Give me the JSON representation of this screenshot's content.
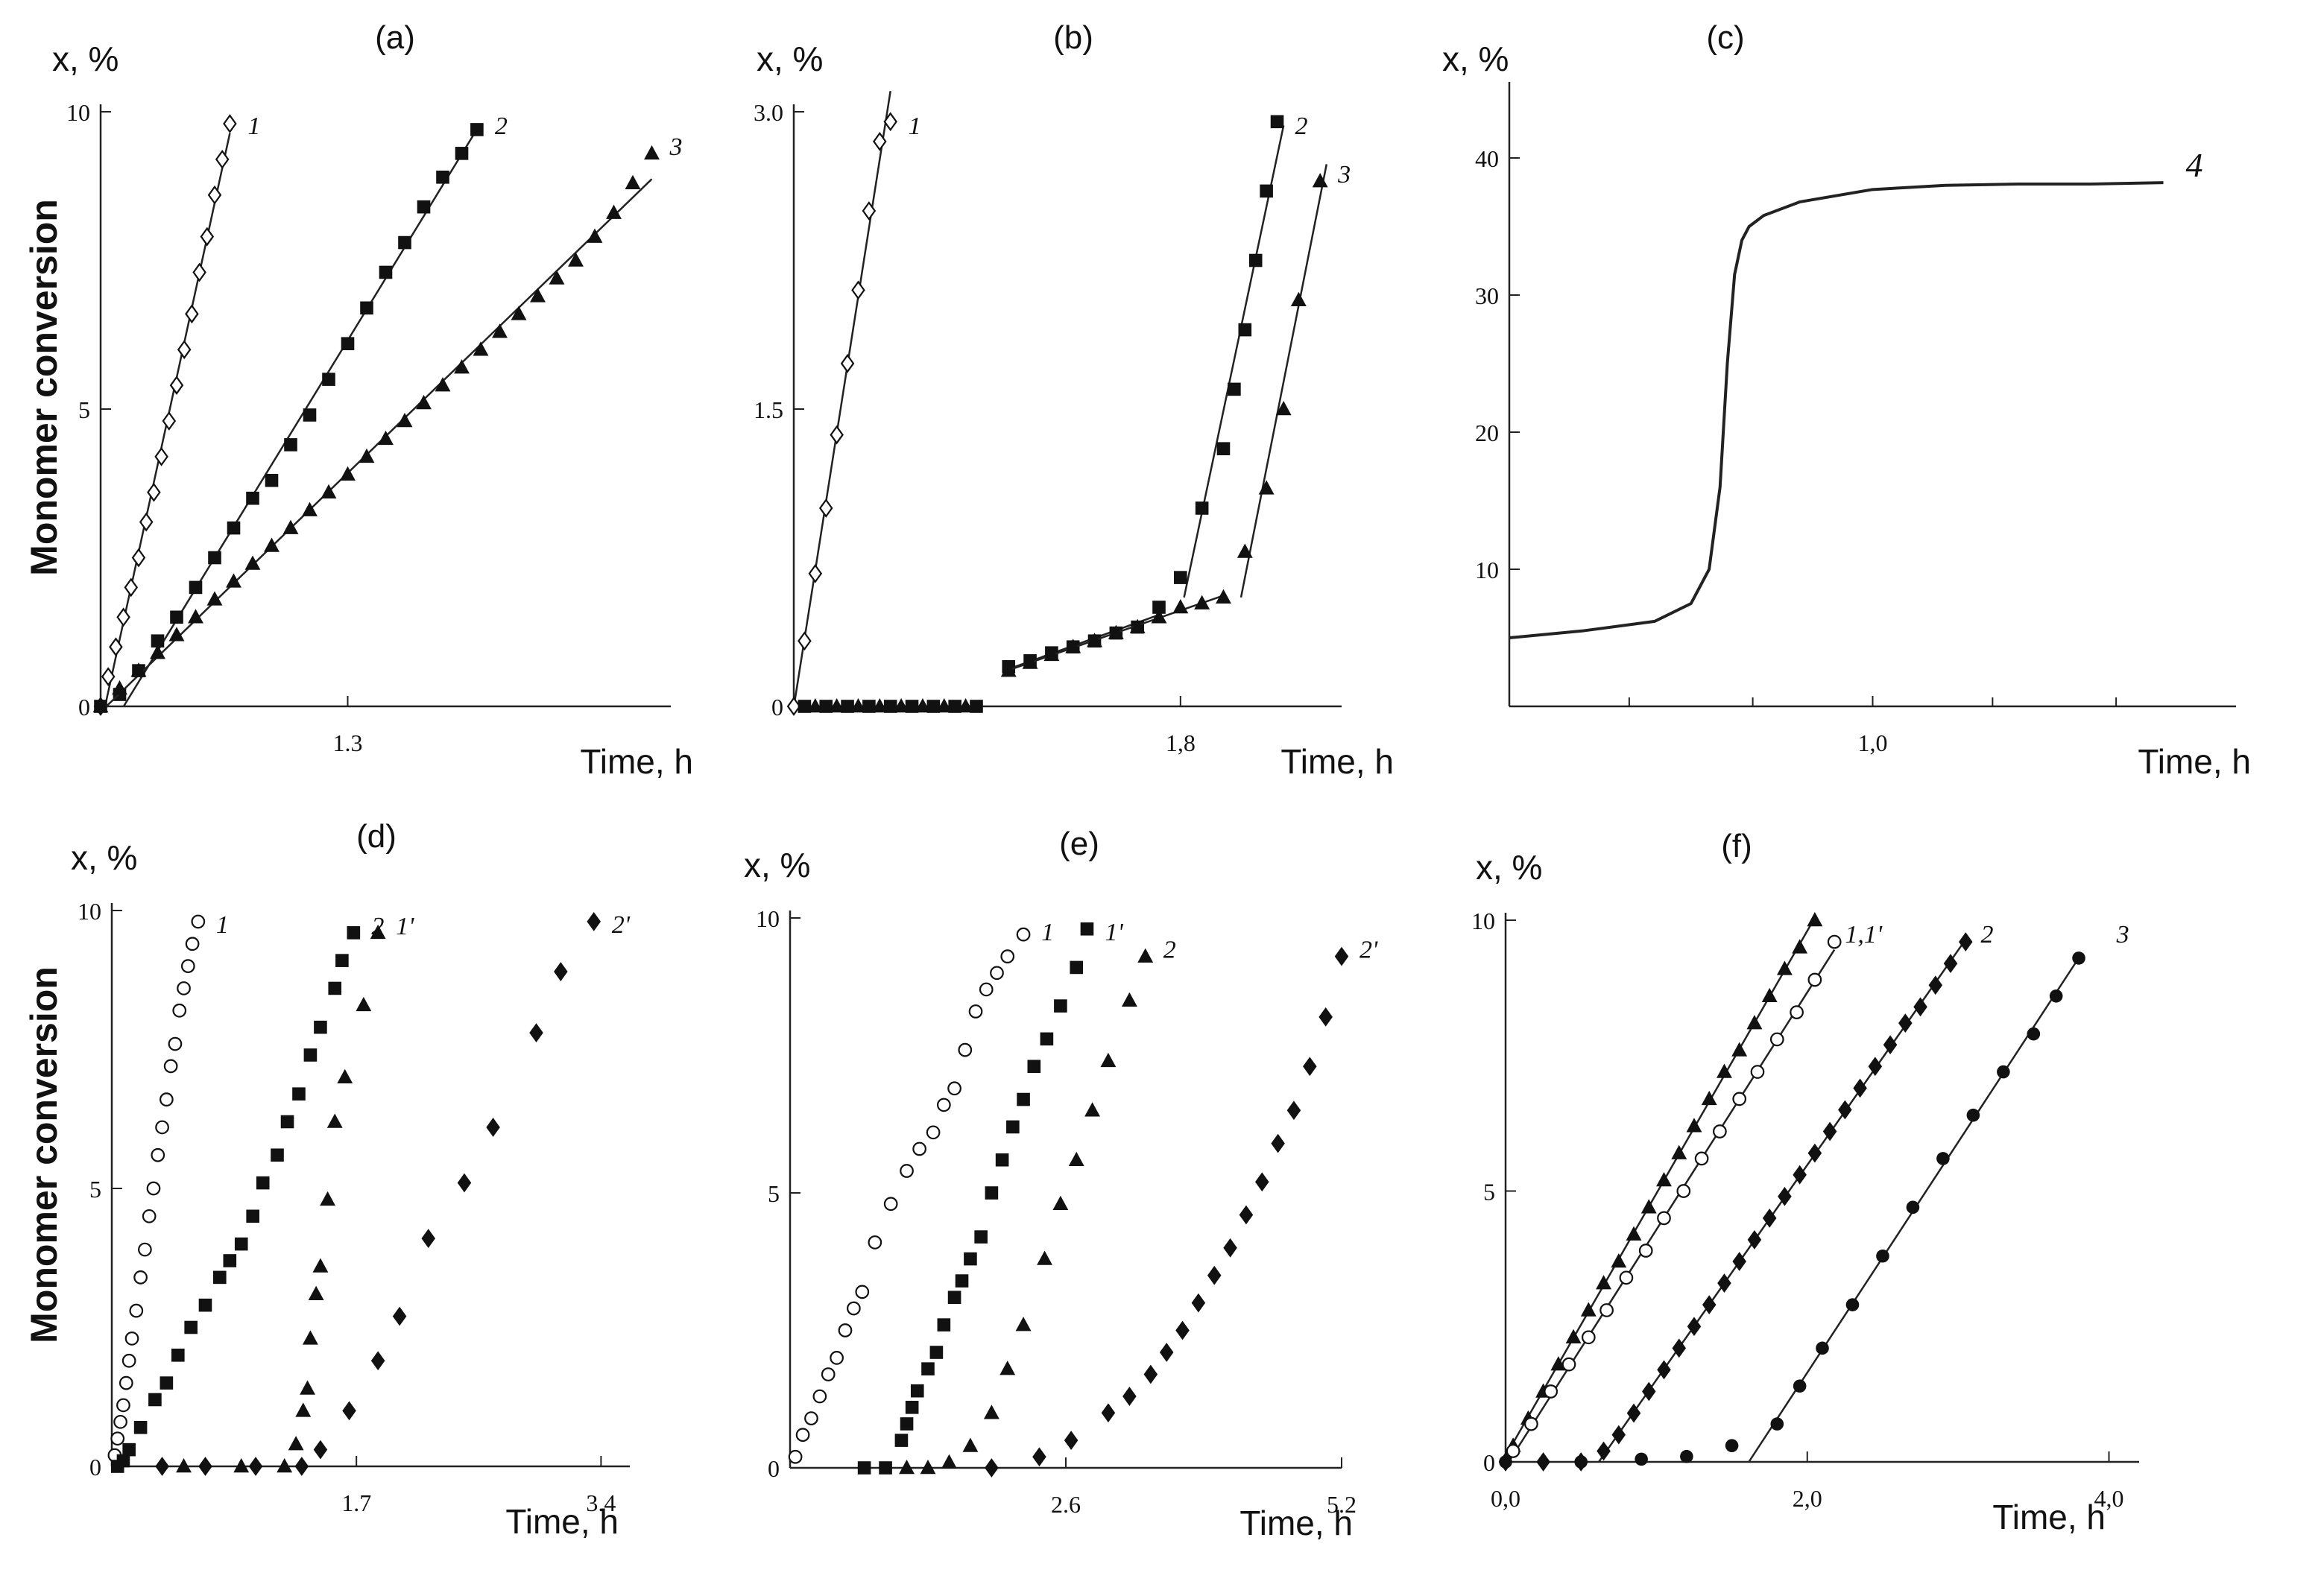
{
  "figure": {
    "ylabel_top": "Monomer conversion",
    "ylabel_bottom": "Monomer conversion"
  },
  "chart_data": [
    {
      "panel": "(a)",
      "type": "scatter",
      "ylabel": "x, %",
      "xlabel": "Time, h",
      "xlim": [
        0,
        3.0
      ],
      "ylim": [
        0,
        10
      ],
      "xticks": [
        {
          "v": 1.3,
          "label": "1.3"
        }
      ],
      "yticks": [
        {
          "v": 0,
          "label": "0"
        },
        {
          "v": 5,
          "label": "5"
        },
        {
          "v": 10,
          "label": "10"
        }
      ],
      "series": [
        {
          "name": "1",
          "marker": "diamond-open",
          "fit": true,
          "x": [
            0,
            0.04,
            0.08,
            0.12,
            0.16,
            0.2,
            0.24,
            0.28,
            0.32,
            0.36,
            0.4,
            0.44,
            0.48,
            0.52,
            0.56,
            0.6,
            0.64,
            0.68
          ],
          "y": [
            0,
            0.5,
            1.0,
            1.5,
            2.0,
            2.5,
            3.1,
            3.6,
            4.2,
            4.8,
            5.4,
            6.0,
            6.6,
            7.3,
            7.9,
            8.6,
            9.2,
            9.8
          ]
        },
        {
          "name": "2",
          "marker": "square",
          "fit": true,
          "x": [
            0,
            0.1,
            0.2,
            0.3,
            0.4,
            0.5,
            0.6,
            0.7,
            0.8,
            0.9,
            1.0,
            1.1,
            1.2,
            1.3,
            1.4,
            1.5,
            1.6,
            1.7,
            1.8,
            1.9,
            1.98
          ],
          "y": [
            0,
            0.2,
            0.6,
            1.1,
            1.5,
            2.0,
            2.5,
            3.0,
            3.5,
            3.8,
            4.4,
            4.9,
            5.5,
            6.1,
            6.7,
            7.3,
            7.8,
            8.4,
            8.9,
            9.3,
            9.7
          ]
        },
        {
          "name": "3",
          "marker": "triangle",
          "fit": true,
          "x": [
            0,
            0.1,
            0.2,
            0.3,
            0.4,
            0.5,
            0.6,
            0.7,
            0.8,
            0.9,
            1.0,
            1.1,
            1.2,
            1.3,
            1.4,
            1.5,
            1.6,
            1.7,
            1.8,
            1.9,
            2.0,
            2.1,
            2.2,
            2.3,
            2.4,
            2.5,
            2.6,
            2.7,
            2.8,
            2.9
          ],
          "y": [
            0,
            0.3,
            0.6,
            0.9,
            1.2,
            1.5,
            1.8,
            2.1,
            2.4,
            2.7,
            3.0,
            3.3,
            3.6,
            3.9,
            4.2,
            4.5,
            4.8,
            5.1,
            5.4,
            5.7,
            6.0,
            6.3,
            6.6,
            6.9,
            7.2,
            7.5,
            7.9,
            8.3,
            8.8,
            9.3
          ]
        }
      ]
    },
    {
      "panel": "(b)",
      "type": "scatter",
      "ylabel": "x, %",
      "xlabel": "Time, h",
      "xlim": [
        0,
        2.55
      ],
      "ylim": [
        0,
        3.0
      ],
      "xticks": [
        {
          "v": 1.8,
          "label": "1,8"
        }
      ],
      "yticks": [
        {
          "v": 0,
          "label": "0"
        },
        {
          "v": 1.5,
          "label": "1.5"
        },
        {
          "v": 3.0,
          "label": "3.0"
        }
      ],
      "series": [
        {
          "name": "1",
          "marker": "diamond-open",
          "fit": true,
          "x": [
            0,
            0.05,
            0.1,
            0.15,
            0.2,
            0.25,
            0.3,
            0.35,
            0.4,
            0.45
          ],
          "y": [
            0,
            0.33,
            0.67,
            1.0,
            1.37,
            1.73,
            2.1,
            2.5,
            2.85,
            2.95
          ]
        },
        {
          "name": "2",
          "marker": "square",
          "fit": false,
          "x": [
            0.05,
            0.15,
            0.25,
            0.35,
            0.45,
            0.55,
            0.65,
            0.75,
            0.85,
            1.0,
            1.1,
            1.2,
            1.3,
            1.4,
            1.5,
            1.6,
            1.7,
            1.8,
            1.9,
            2.0,
            2.05,
            2.1,
            2.15,
            2.2,
            2.25
          ],
          "y": [
            0,
            0,
            0,
            0,
            0,
            0,
            0,
            0,
            0,
            0.2,
            0.23,
            0.27,
            0.3,
            0.33,
            0.37,
            0.4,
            0.5,
            0.65,
            1.0,
            1.3,
            1.6,
            1.9,
            2.25,
            2.6,
            2.95
          ]
        },
        {
          "name": "3",
          "marker": "triangle",
          "fit": false,
          "x": [
            0.1,
            0.2,
            0.3,
            0.4,
            0.5,
            0.6,
            0.7,
            0.8,
            1.0,
            1.1,
            1.2,
            1.3,
            1.4,
            1.5,
            1.6,
            1.7,
            1.8,
            1.9,
            2.0,
            2.1,
            2.2,
            2.28,
            2.35,
            2.45
          ],
          "y": [
            0,
            0,
            0,
            0,
            0,
            0,
            0,
            0,
            0.18,
            0.22,
            0.26,
            0.3,
            0.33,
            0.37,
            0.4,
            0.45,
            0.5,
            0.52,
            0.55,
            0.78,
            1.1,
            1.5,
            2.05,
            2.65
          ]
        }
      ]
    },
    {
      "panel": "(c)",
      "type": "line",
      "ylabel": "x, %",
      "xlabel": "Time, h",
      "xlim": [
        0,
        2.0
      ],
      "ylim": [
        0,
        45
      ],
      "xticks": [
        {
          "v": 1.0,
          "label": "1,0"
        }
      ],
      "yticks": [
        {
          "v": 10,
          "label": "10"
        },
        {
          "v": 20,
          "label": "20"
        },
        {
          "v": 30,
          "label": "30"
        },
        {
          "v": 40,
          "label": "40"
        }
      ],
      "series": [
        {
          "name": "4",
          "x": [
            0,
            0.2,
            0.4,
            0.5,
            0.55,
            0.58,
            0.6,
            0.62,
            0.64,
            0.66,
            0.7,
            0.8,
            1.0,
            1.2,
            1.4,
            1.6,
            1.8
          ],
          "y": [
            5.0,
            5.5,
            6.2,
            7.5,
            10.0,
            16.0,
            25.0,
            31.5,
            34.0,
            35.0,
            35.8,
            36.8,
            37.7,
            38.0,
            38.1,
            38.1,
            38.2
          ]
        }
      ]
    },
    {
      "panel": "(d)",
      "type": "scatter",
      "ylabel": "x, %",
      "xlabel": "Time, h",
      "xlim": [
        0,
        3.6
      ],
      "ylim": [
        0,
        10
      ],
      "xticks": [
        {
          "v": 1.7,
          "label": "1.7"
        },
        {
          "v": 3.4,
          "label": "3.4"
        }
      ],
      "yticks": [
        {
          "v": 0,
          "label": "0"
        },
        {
          "v": 5,
          "label": "5"
        },
        {
          "v": 10,
          "label": "10"
        }
      ],
      "series": [
        {
          "name": "1",
          "marker": "circle-open",
          "x": [
            0.02,
            0.04,
            0.06,
            0.08,
            0.1,
            0.12,
            0.14,
            0.17,
            0.2,
            0.23,
            0.26,
            0.29,
            0.32,
            0.35,
            0.38,
            0.41,
            0.44,
            0.47,
            0.5,
            0.53,
            0.56,
            0.6
          ],
          "y": [
            0.2,
            0.5,
            0.8,
            1.1,
            1.5,
            1.9,
            2.3,
            2.8,
            3.4,
            3.9,
            4.5,
            5.0,
            5.6,
            6.1,
            6.6,
            7.2,
            7.6,
            8.2,
            8.6,
            9.0,
            9.4,
            9.8
          ]
        },
        {
          "name": "2",
          "marker": "square",
          "x": [
            0.04,
            0.08,
            0.12,
            0.2,
            0.3,
            0.38,
            0.46,
            0.55,
            0.65,
            0.75,
            0.82,
            0.9,
            0.98,
            1.05,
            1.15,
            1.22,
            1.3,
            1.38,
            1.45,
            1.55,
            1.6,
            1.68
          ],
          "y": [
            0,
            0.1,
            0.3,
            0.7,
            1.2,
            1.5,
            2.0,
            2.5,
            2.9,
            3.4,
            3.7,
            4.0,
            4.5,
            5.1,
            5.6,
            6.2,
            6.7,
            7.4,
            7.9,
            8.6,
            9.1,
            9.6
          ]
        },
        {
          "name": "1'",
          "marker": "triangle",
          "x": [
            0.5,
            0.9,
            1.2,
            1.28,
            1.33,
            1.36,
            1.38,
            1.42,
            1.45,
            1.5,
            1.55,
            1.62,
            1.75,
            1.85
          ],
          "y": [
            0,
            0,
            0,
            0.4,
            1.0,
            1.4,
            2.3,
            3.1,
            3.6,
            4.8,
            6.2,
            7.0,
            8.3,
            9.6
          ]
        },
        {
          "name": "2'",
          "marker": "diamond",
          "x": [
            0.35,
            0.65,
            1.0,
            1.32,
            1.45,
            1.65,
            1.85,
            2.0,
            2.2,
            2.45,
            2.65,
            2.95,
            3.12,
            3.35
          ],
          "y": [
            0,
            0,
            0,
            0,
            0.3,
            1.0,
            1.9,
            2.7,
            4.1,
            5.1,
            6.1,
            7.8,
            8.9,
            9.8
          ]
        }
      ]
    },
    {
      "panel": "(e)",
      "type": "scatter",
      "ylabel": "x, %",
      "xlabel": "Time, h",
      "xlim": [
        0,
        5.2
      ],
      "ylim": [
        0,
        10
      ],
      "xticks": [
        {
          "v": 2.6,
          "label": "2.6"
        },
        {
          "v": 5.2,
          "label": "5.2"
        }
      ],
      "yticks": [
        {
          "v": 0,
          "label": "0"
        },
        {
          "v": 5,
          "label": "5"
        },
        {
          "v": 10,
          "label": "10"
        }
      ],
      "series": [
        {
          "name": "1",
          "marker": "circle-open",
          "x": [
            0.05,
            0.12,
            0.2,
            0.28,
            0.36,
            0.44,
            0.52,
            0.6,
            0.68,
            0.8,
            0.95,
            1.1,
            1.22,
            1.35,
            1.45,
            1.55,
            1.65,
            1.75,
            1.85,
            1.95,
            2.05,
            2.2
          ],
          "y": [
            0.2,
            0.6,
            0.9,
            1.3,
            1.7,
            2.0,
            2.5,
            2.9,
            3.2,
            4.1,
            4.8,
            5.4,
            5.8,
            6.1,
            6.6,
            6.9,
            7.6,
            8.3,
            8.7,
            9.0,
            9.3,
            9.7
          ]
        },
        {
          "name": "1'",
          "marker": "square",
          "x": [
            0.7,
            0.9,
            1.05,
            1.1,
            1.15,
            1.2,
            1.3,
            1.38,
            1.45,
            1.55,
            1.62,
            1.7,
            1.8,
            1.9,
            2.0,
            2.1,
            2.2,
            2.3,
            2.42,
            2.55,
            2.7,
            2.8
          ],
          "y": [
            0,
            0,
            0.5,
            0.8,
            1.1,
            1.4,
            1.8,
            2.1,
            2.6,
            3.1,
            3.4,
            3.8,
            4.2,
            5.0,
            5.6,
            6.2,
            6.7,
            7.3,
            7.8,
            8.4,
            9.1,
            9.8
          ]
        },
        {
          "name": "2",
          "marker": "triangle",
          "x": [
            1.1,
            1.3,
            1.5,
            1.7,
            1.9,
            2.05,
            2.2,
            2.4,
            2.55,
            2.7,
            2.85,
            3.0,
            3.2,
            3.35
          ],
          "y": [
            0,
            0,
            0.1,
            0.4,
            1.0,
            1.8,
            2.6,
            3.8,
            4.8,
            5.6,
            6.5,
            7.4,
            8.5,
            9.3
          ]
        },
        {
          "name": "2'",
          "marker": "diamond",
          "x": [
            1.9,
            2.35,
            2.65,
            3.0,
            3.2,
            3.4,
            3.55,
            3.7,
            3.85,
            4.0,
            4.15,
            4.3,
            4.45,
            4.6,
            4.75,
            4.9,
            5.05,
            5.2
          ],
          "y": [
            0,
            0.2,
            0.5,
            1.0,
            1.3,
            1.7,
            2.1,
            2.5,
            3.0,
            3.5,
            4.0,
            4.6,
            5.2,
            5.9,
            6.5,
            7.3,
            8.2,
            9.3
          ]
        }
      ]
    },
    {
      "panel": "(f)",
      "type": "scatter",
      "ylabel": "x, %",
      "xlabel": "Time, h",
      "xlim": [
        0,
        4.2
      ],
      "ylim": [
        0,
        10
      ],
      "xticks": [
        {
          "v": 0,
          "label": "0,0"
        },
        {
          "v": 2.0,
          "label": "2,0"
        },
        {
          "v": 4.0,
          "label": "4,0"
        }
      ],
      "yticks": [
        {
          "v": 0,
          "label": "0"
        },
        {
          "v": 5,
          "label": "5"
        },
        {
          "v": 10,
          "label": "10"
        }
      ],
      "series_labels": [
        {
          "v": 2.25,
          "label": "1,1'"
        },
        {
          "v": 3.15,
          "label": "2"
        },
        {
          "v": 4.05,
          "label": "3"
        }
      ],
      "series": [
        {
          "name": "1",
          "marker": "triangle",
          "fit": true,
          "x": [
            0.05,
            0.15,
            0.25,
            0.35,
            0.45,
            0.55,
            0.65,
            0.75,
            0.85,
            0.95,
            1.05,
            1.15,
            1.25,
            1.35,
            1.45,
            1.55,
            1.65,
            1.75,
            1.85,
            1.95,
            2.05
          ],
          "y": [
            0.3,
            0.8,
            1.3,
            1.8,
            2.3,
            2.8,
            3.3,
            3.7,
            4.2,
            4.7,
            5.2,
            5.7,
            6.2,
            6.7,
            7.2,
            7.6,
            8.1,
            8.6,
            9.1,
            9.5,
            10.0
          ]
        },
        {
          "name": "1'",
          "marker": "circle-open",
          "fit": true,
          "x": [
            0.05,
            0.17,
            0.3,
            0.42,
            0.55,
            0.67,
            0.8,
            0.93,
            1.05,
            1.18,
            1.3,
            1.42,
            1.55,
            1.67,
            1.8,
            1.93,
            2.05,
            2.18
          ],
          "y": [
            0.2,
            0.7,
            1.3,
            1.8,
            2.3,
            2.8,
            3.4,
            3.9,
            4.5,
            5.0,
            5.6,
            6.1,
            6.7,
            7.2,
            7.8,
            8.3,
            8.9,
            9.6
          ]
        },
        {
          "name": "2",
          "marker": "diamond",
          "fit": true,
          "x": [
            0,
            0.25,
            0.5,
            0.65,
            0.75,
            0.85,
            0.95,
            1.05,
            1.15,
            1.25,
            1.35,
            1.45,
            1.55,
            1.65,
            1.75,
            1.85,
            1.95,
            2.05,
            2.15,
            2.25,
            2.35,
            2.45,
            2.55,
            2.65,
            2.75,
            2.85,
            2.95,
            3.05
          ],
          "y": [
            0,
            0,
            0,
            0.2,
            0.5,
            0.9,
            1.3,
            1.7,
            2.1,
            2.5,
            2.9,
            3.3,
            3.7,
            4.1,
            4.5,
            4.9,
            5.3,
            5.7,
            6.1,
            6.5,
            6.9,
            7.3,
            7.7,
            8.1,
            8.4,
            8.8,
            9.2,
            9.6
          ]
        },
        {
          "name": "3",
          "marker": "circle",
          "fit": true,
          "x": [
            0,
            0.5,
            0.9,
            1.2,
            1.5,
            1.8,
            1.95,
            2.1,
            2.3,
            2.5,
            2.7,
            2.9,
            3.1,
            3.3,
            3.5,
            3.65,
            3.8
          ],
          "y": [
            0,
            0,
            0.05,
            0.1,
            0.3,
            0.7,
            1.4,
            2.1,
            2.9,
            3.8,
            4.7,
            5.6,
            6.4,
            7.2,
            7.9,
            8.6,
            9.3
          ]
        }
      ]
    }
  ]
}
